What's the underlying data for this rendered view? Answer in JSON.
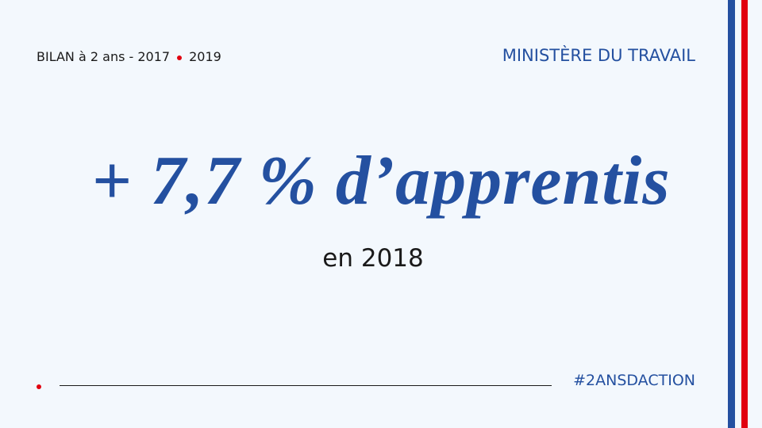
{
  "header": {
    "left_label": "BILAN à 2 ans - 2017",
    "left_year": "2019",
    "ministry": "MINISTÈRE DU TRAVAIL"
  },
  "headline": {
    "main": "+ 7,7 % d’apprentis",
    "sub": "en 2018"
  },
  "footer": {
    "hashtag": "#2ANSDACTION"
  }
}
